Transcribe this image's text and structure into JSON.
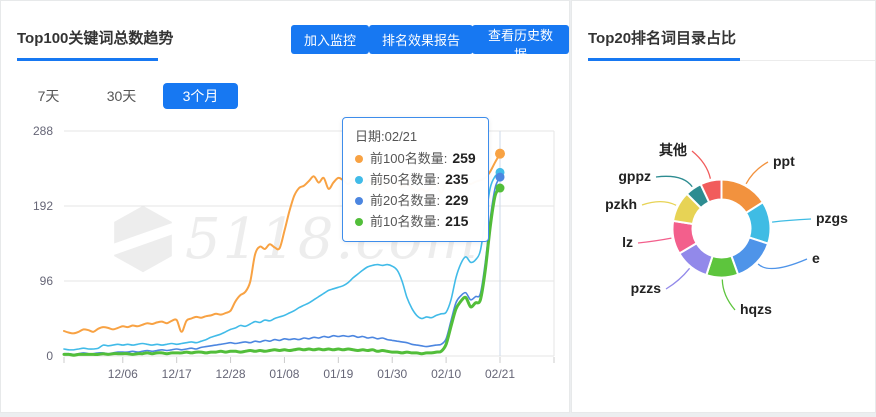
{
  "left_panel": {
    "title": "Top100关键词总数趋势",
    "buttons": [
      "加入监控",
      "排名效果报告",
      "查看历史数据"
    ],
    "tabs": [
      {
        "label": "7天",
        "active": false
      },
      {
        "label": "30天",
        "active": false
      },
      {
        "label": "3个月",
        "active": true
      }
    ],
    "tooltip": {
      "title": "日期:02/21",
      "rows": [
        {
          "label": "前100名数量:",
          "value": "259",
          "color": "#F8A243"
        },
        {
          "label": "前50名数量:",
          "value": "235",
          "color": "#41BBE8"
        },
        {
          "label": "前20名数量:",
          "value": "229",
          "color": "#4C86E0"
        },
        {
          "label": "前10名数量:",
          "value": "215",
          "color": "#52BE3A"
        }
      ]
    },
    "watermark": "5118.com"
  },
  "right_panel": {
    "title": "Top20排名词目录占比"
  },
  "accent_color": "#1778F2",
  "chart_data": [
    {
      "type": "line",
      "title": "Top100关键词总数趋势",
      "xlabel": "",
      "ylabel": "",
      "ylim": [
        0,
        288
      ],
      "yticks": [
        288,
        192,
        96,
        0
      ],
      "grid": true,
      "x_tick_labels": [
        "12/06",
        "12/17",
        "12/28",
        "01/08",
        "01/19",
        "01/30",
        "02/10",
        "02/21"
      ],
      "x_tick_indices": [
        12,
        23,
        34,
        45,
        56,
        67,
        78,
        89
      ],
      "hover_index": 89,
      "hover_date": "02/21",
      "series": [
        {
          "name": "前100名数量",
          "color": "#F8A243",
          "width": 2,
          "values": [
            32,
            30,
            29,
            31,
            34,
            33,
            31,
            35,
            37,
            36,
            34,
            36,
            38,
            37,
            39,
            38,
            40,
            42,
            41,
            43,
            44,
            42,
            45,
            46,
            31,
            45,
            48,
            50,
            49,
            51,
            52,
            54,
            53,
            55,
            58,
            70,
            78,
            82,
            95,
            130,
            140,
            137,
            143,
            139,
            138,
            160,
            185,
            205,
            215,
            218,
            224,
            230,
            222,
            228,
            214,
            222,
            228,
            225,
            220,
            226,
            223,
            218,
            225,
            221,
            216,
            224,
            210,
            218,
            222,
            216,
            220,
            215,
            211,
            214,
            210,
            216,
            220,
            209,
            221,
            220,
            222,
            219,
            221,
            220,
            223,
            225,
            228,
            236,
            248,
            259
          ]
        },
        {
          "name": "前50名数量",
          "color": "#41BBE8",
          "width": 1.6,
          "values": [
            9,
            8,
            8,
            9,
            10,
            9,
            9,
            10,
            14,
            13,
            14,
            15,
            14,
            15,
            14,
            15,
            16,
            15,
            14,
            15,
            14,
            15,
            16,
            15,
            16,
            17,
            18,
            17,
            19,
            21,
            24,
            26,
            28,
            31,
            34,
            36,
            39,
            38,
            41,
            44,
            43,
            46,
            45,
            48,
            50,
            52,
            55,
            58,
            62,
            65,
            68,
            72,
            76,
            80,
            84,
            86,
            88,
            90,
            94,
            100,
            105,
            110,
            114,
            116,
            117,
            116,
            117,
            115,
            110,
            96,
            75,
            61,
            52,
            48,
            50,
            49,
            52,
            54,
            56,
            72,
            100,
            118,
            127,
            120,
            123,
            135,
            175,
            215,
            230,
            235
          ]
        },
        {
          "name": "前20名数量",
          "color": "#4C86E0",
          "width": 1.6,
          "values": [
            3,
            3,
            2,
            3,
            4,
            3,
            3,
            4,
            4,
            3,
            4,
            5,
            5,
            5,
            6,
            5,
            6,
            7,
            6,
            7,
            8,
            7,
            8,
            9,
            8,
            9,
            10,
            9,
            11,
            12,
            13,
            14,
            15,
            16,
            17,
            16,
            17,
            18,
            17,
            19,
            18,
            20,
            19,
            21,
            20,
            22,
            21,
            22,
            21,
            23,
            22,
            24,
            23,
            25,
            24,
            26,
            25,
            26,
            25,
            26,
            24,
            25,
            23,
            24,
            22,
            23,
            21,
            20,
            19,
            18,
            17,
            15,
            14,
            13,
            12,
            13,
            14,
            15,
            22,
            45,
            68,
            77,
            81,
            72,
            76,
            80,
            120,
            175,
            215,
            229
          ]
        },
        {
          "name": "前10名数量",
          "color": "#52BE3A",
          "width": 3,
          "values": [
            2,
            2,
            1,
            2,
            2,
            2,
            2,
            2,
            3,
            2,
            3,
            3,
            3,
            3,
            2,
            3,
            3,
            4,
            3,
            4,
            4,
            3,
            4,
            4,
            4,
            5,
            4,
            5,
            5,
            4,
            5,
            5,
            6,
            5,
            6,
            6,
            5,
            6,
            7,
            6,
            7,
            6,
            7,
            8,
            7,
            8,
            7,
            8,
            9,
            8,
            9,
            8,
            9,
            8,
            9,
            8,
            9,
            8,
            9,
            8,
            7,
            8,
            7,
            8,
            6,
            7,
            6,
            5,
            5,
            4,
            5,
            4,
            4,
            3,
            4,
            4,
            5,
            6,
            15,
            38,
            60,
            70,
            75,
            63,
            68,
            72,
            110,
            165,
            205,
            215
          ]
        }
      ]
    },
    {
      "type": "pie",
      "title": "Top20排名词目录占比",
      "donut": true,
      "slices": [
        {
          "label": "ppt",
          "percent": 16,
          "color": "#F2923E"
        },
        {
          "label": "pzgs",
          "percent": 14,
          "color": "#3FBCE4"
        },
        {
          "label": "e",
          "percent": 14.5,
          "color": "#4E94E9"
        },
        {
          "label": "hqzs",
          "percent": 10.5,
          "color": "#5DC53D"
        },
        {
          "label": "pzzs",
          "percent": 11.5,
          "color": "#9289EA"
        },
        {
          "label": "lz",
          "percent": 11,
          "color": "#F35F8C"
        },
        {
          "label": "pzkh",
          "percent": 10,
          "color": "#E7D355"
        },
        {
          "label": "gppz",
          "percent": 5.5,
          "color": "#2D8C91"
        },
        {
          "label": "其他",
          "percent": 7,
          "color": "#F15C5C"
        }
      ]
    }
  ]
}
